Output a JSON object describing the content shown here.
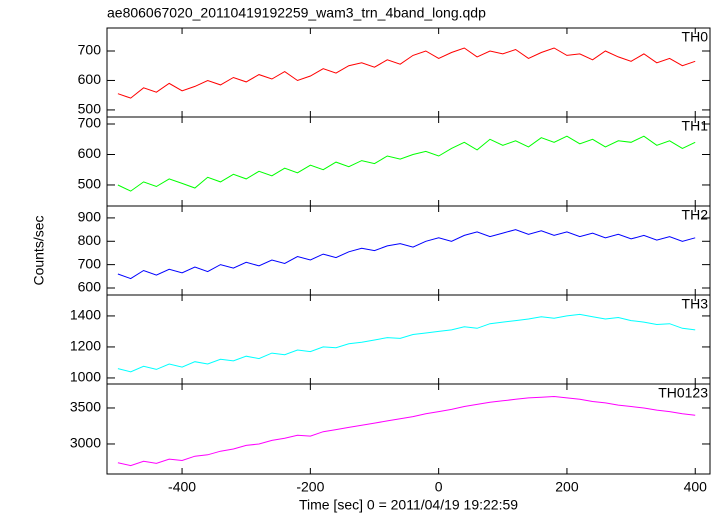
{
  "chart_data": [
    {
      "type": "line",
      "title": "ae806067020_20110419192259_wam3_trn_4band_long.qdp",
      "x": [
        -500,
        -480,
        -460,
        -440,
        -420,
        -400,
        -380,
        -360,
        -340,
        -320,
        -300,
        -280,
        -260,
        -240,
        -220,
        -200,
        -180,
        -160,
        -140,
        -120,
        -100,
        -80,
        -60,
        -40,
        -20,
        0,
        20,
        40,
        60,
        80,
        100,
        120,
        140,
        160,
        180,
        200,
        220,
        240,
        260,
        280,
        300,
        320,
        340,
        360,
        380,
        400
      ],
      "series": [
        {
          "name": "TH0",
          "color": "#ff0000",
          "values": [
            555,
            540,
            575,
            560,
            590,
            565,
            580,
            600,
            585,
            610,
            595,
            620,
            605,
            630,
            600,
            615,
            640,
            625,
            650,
            660,
            645,
            670,
            655,
            685,
            700,
            675,
            695,
            710,
            680,
            700,
            690,
            705,
            675,
            695,
            710,
            685,
            690,
            670,
            700,
            680,
            665,
            690,
            660,
            675,
            650,
            665
          ]
        }
      ],
      "xlim": [
        -517,
        423
      ],
      "xticks": [
        -400,
        -200,
        0,
        200,
        400
      ],
      "ylim": [
        476,
        778
      ],
      "yticks": [
        500,
        600,
        700
      ]
    },
    {
      "type": "line",
      "x": [
        -500,
        -480,
        -460,
        -440,
        -420,
        -400,
        -380,
        -360,
        -340,
        -320,
        -300,
        -280,
        -260,
        -240,
        -220,
        -200,
        -180,
        -160,
        -140,
        -120,
        -100,
        -80,
        -60,
        -40,
        -20,
        0,
        20,
        40,
        60,
        80,
        100,
        120,
        140,
        160,
        180,
        200,
        220,
        240,
        260,
        280,
        300,
        320,
        340,
        360,
        380,
        400
      ],
      "series": [
        {
          "name": "TH1",
          "color": "#00ff00",
          "values": [
            500,
            480,
            510,
            495,
            520,
            505,
            490,
            525,
            510,
            535,
            520,
            545,
            530,
            555,
            540,
            565,
            550,
            575,
            560,
            580,
            570,
            595,
            585,
            600,
            610,
            595,
            620,
            640,
            615,
            650,
            630,
            645,
            625,
            655,
            640,
            660,
            635,
            650,
            625,
            645,
            640,
            660,
            630,
            645,
            620,
            640
          ]
        }
      ],
      "xlim": [
        -517,
        423
      ],
      "xticks": [
        -400,
        -200,
        0,
        200,
        400
      ],
      "ylim": [
        431,
        723
      ],
      "yticks": [
        500,
        600,
        700
      ]
    },
    {
      "type": "line",
      "y_label": "Counts/sec",
      "x": [
        -500,
        -480,
        -460,
        -440,
        -420,
        -400,
        -380,
        -360,
        -340,
        -320,
        -300,
        -280,
        -260,
        -240,
        -220,
        -200,
        -180,
        -160,
        -140,
        -120,
        -100,
        -80,
        -60,
        -40,
        -20,
        0,
        20,
        40,
        60,
        80,
        100,
        120,
        140,
        160,
        180,
        200,
        220,
        240,
        260,
        280,
        300,
        320,
        340,
        360,
        380,
        400
      ],
      "series": [
        {
          "name": "TH2",
          "color": "#0000ff",
          "values": [
            660,
            640,
            675,
            655,
            680,
            665,
            690,
            670,
            700,
            685,
            710,
            695,
            720,
            705,
            735,
            720,
            745,
            730,
            755,
            770,
            760,
            780,
            790,
            775,
            800,
            815,
            800,
            825,
            840,
            820,
            835,
            850,
            830,
            845,
            825,
            840,
            820,
            835,
            815,
            830,
            810,
            825,
            805,
            820,
            800,
            815
          ]
        }
      ],
      "xlim": [
        -517,
        423
      ],
      "xticks": [
        -400,
        -200,
        0,
        200,
        400
      ],
      "ylim": [
        570,
        951
      ],
      "yticks": [
        600,
        700,
        800,
        900
      ]
    },
    {
      "type": "line",
      "x": [
        -500,
        -480,
        -460,
        -440,
        -420,
        -400,
        -380,
        -360,
        -340,
        -320,
        -300,
        -280,
        -260,
        -240,
        -220,
        -200,
        -180,
        -160,
        -140,
        -120,
        -100,
        -80,
        -60,
        -40,
        -20,
        0,
        20,
        40,
        60,
        80,
        100,
        120,
        140,
        160,
        180,
        200,
        220,
        240,
        260,
        280,
        300,
        320,
        340,
        360,
        380,
        400
      ],
      "series": [
        {
          "name": "TH3",
          "color": "#00ffff",
          "values": [
            1060,
            1040,
            1075,
            1055,
            1090,
            1070,
            1105,
            1090,
            1120,
            1110,
            1140,
            1125,
            1160,
            1150,
            1180,
            1170,
            1200,
            1195,
            1220,
            1230,
            1245,
            1260,
            1255,
            1280,
            1290,
            1300,
            1310,
            1330,
            1320,
            1350,
            1360,
            1370,
            1380,
            1395,
            1385,
            1400,
            1410,
            1395,
            1380,
            1390,
            1370,
            1360,
            1345,
            1350,
            1320,
            1310
          ]
        }
      ],
      "xlim": [
        -517,
        423
      ],
      "xticks": [
        -400,
        -200,
        0,
        200,
        400
      ],
      "ylim": [
        961,
        1535
      ],
      "yticks": [
        1000,
        1200,
        1400
      ]
    },
    {
      "type": "line",
      "x_label": "Time [sec] 0 = 2011/04/19 19:22:59",
      "x": [
        -500,
        -480,
        -460,
        -440,
        -420,
        -400,
        -380,
        -360,
        -340,
        -320,
        -300,
        -280,
        -260,
        -240,
        -220,
        -200,
        -180,
        -160,
        -140,
        -120,
        -100,
        -80,
        -60,
        -40,
        -20,
        0,
        20,
        40,
        60,
        80,
        100,
        120,
        140,
        160,
        180,
        200,
        220,
        240,
        260,
        280,
        300,
        320,
        340,
        360,
        380,
        400
      ],
      "series": [
        {
          "name": "TH0123",
          "color": "#ff00ff",
          "values": [
            2740,
            2700,
            2760,
            2730,
            2790,
            2770,
            2830,
            2850,
            2900,
            2930,
            2980,
            3000,
            3050,
            3080,
            3120,
            3110,
            3170,
            3200,
            3230,
            3260,
            3290,
            3320,
            3350,
            3380,
            3420,
            3450,
            3480,
            3520,
            3550,
            3580,
            3600,
            3620,
            3640,
            3650,
            3660,
            3640,
            3620,
            3590,
            3570,
            3540,
            3520,
            3500,
            3470,
            3450,
            3420,
            3400
          ]
        }
      ],
      "xlim": [
        -517,
        423
      ],
      "xticks": [
        -400,
        -200,
        0,
        200,
        400
      ],
      "ylim": [
        2583,
        3833
      ],
      "yticks": [
        3000,
        3500
      ],
      "show_xtick_labels": true
    }
  ]
}
